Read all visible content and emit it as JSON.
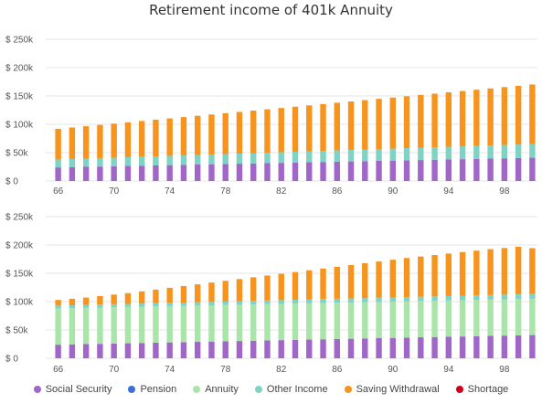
{
  "title": "Retirement income of 401k Annuity",
  "colors": {
    "social_security": "#a066c8",
    "pension": "#3b6fd8",
    "annuity": "#a9e4a9",
    "other_income": "#7fd3c4",
    "saving_withdrawal": "#f7941d",
    "shortage": "#d0021b"
  },
  "legend": [
    {
      "key": "social_security",
      "label": "Social Security"
    },
    {
      "key": "pension",
      "label": "Pension"
    },
    {
      "key": "annuity",
      "label": "Annuity"
    },
    {
      "key": "other_income",
      "label": "Other Income"
    },
    {
      "key": "saving_withdrawal",
      "label": "Saving Withdrawal"
    },
    {
      "key": "shortage",
      "label": "Shortage"
    }
  ],
  "chart_data": [
    {
      "type": "bar",
      "stacked": true,
      "title": "Retirement income of 401k Annuity",
      "x": [
        66,
        67,
        68,
        69,
        70,
        71,
        72,
        73,
        74,
        75,
        76,
        77,
        78,
        79,
        80,
        81,
        82,
        83,
        84,
        85,
        86,
        87,
        88,
        89,
        90,
        91,
        92,
        93,
        94,
        95,
        96,
        97,
        98,
        99,
        100
      ],
      "xticks": [
        "66",
        "70",
        "74",
        "78",
        "82",
        "86",
        "90",
        "94",
        "98"
      ],
      "ylim": [
        0,
        250000
      ],
      "yticks": [
        "$ 0",
        "$ 50k",
        "$ 100k",
        "$ 150k",
        "$ 200k",
        "$ 250k"
      ],
      "grid": true,
      "series": [
        {
          "name": "Social Security",
          "values": [
            24000,
            24500,
            25000,
            25500,
            26000,
            26500,
            27000,
            27500,
            28000,
            28500,
            29000,
            29500,
            30000,
            30500,
            31000,
            31500,
            32000,
            32500,
            33000,
            33500,
            34000,
            34500,
            35000,
            35500,
            36000,
            36500,
            37000,
            37500,
            38000,
            38500,
            39000,
            39500,
            40000,
            40500,
            41000
          ]
        },
        {
          "name": "Other Income",
          "values": [
            14000,
            14300,
            14600,
            14900,
            15200,
            15500,
            15800,
            16100,
            16400,
            16700,
            17000,
            17300,
            17600,
            17900,
            18200,
            18500,
            18800,
            19100,
            19400,
            19700,
            20000,
            20300,
            20600,
            20900,
            21200,
            21500,
            21800,
            22100,
            22400,
            22700,
            23000,
            23300,
            23600,
            23900,
            24200
          ]
        },
        {
          "name": "Saving Withdrawal",
          "values": [
            54000,
            55500,
            57000,
            58500,
            60000,
            61500,
            63000,
            64500,
            66000,
            67500,
            69000,
            70500,
            72000,
            73500,
            75000,
            76500,
            78000,
            79500,
            81000,
            82500,
            84000,
            85500,
            87000,
            88500,
            90000,
            91500,
            93000,
            94500,
            96000,
            97500,
            99000,
            100500,
            102000,
            103500,
            105000
          ]
        }
      ]
    },
    {
      "type": "bar",
      "stacked": true,
      "x": [
        66,
        67,
        68,
        69,
        70,
        71,
        72,
        73,
        74,
        75,
        76,
        77,
        78,
        79,
        80,
        81,
        82,
        83,
        84,
        85,
        86,
        87,
        88,
        89,
        90,
        91,
        92,
        93,
        94,
        95,
        96,
        97,
        98,
        99,
        100
      ],
      "xticks": [
        "66",
        "70",
        "74",
        "78",
        "82",
        "86",
        "90",
        "94",
        "98"
      ],
      "ylim": [
        0,
        250000
      ],
      "yticks": [
        "$ 0",
        "$ 50k",
        "$ 100k",
        "$ 150k",
        "$ 200k",
        "$ 250k"
      ],
      "grid": true,
      "series": [
        {
          "name": "Social Security",
          "values": [
            24000,
            24500,
            25000,
            25500,
            26000,
            26500,
            27000,
            27500,
            28000,
            28500,
            29000,
            29500,
            30000,
            30500,
            31000,
            31500,
            32000,
            32500,
            33000,
            33500,
            34000,
            34500,
            35000,
            35500,
            36000,
            36500,
            37000,
            37500,
            38000,
            38500,
            39000,
            39500,
            40000,
            40500,
            41000
          ]
        },
        {
          "name": "Annuity",
          "values": [
            64000,
            64000,
            64000,
            64000,
            64000,
            64000,
            64000,
            64000,
            64000,
            64000,
            64000,
            64000,
            64000,
            64000,
            64000,
            64000,
            64000,
            64000,
            64000,
            64000,
            64000,
            64000,
            64000,
            64000,
            64000,
            64000,
            64000,
            64000,
            64000,
            64000,
            64000,
            64000,
            64000,
            64000,
            64000
          ]
        },
        {
          "name": "Other Income",
          "values": [
            5000,
            5100,
            5200,
            5300,
            5400,
            5500,
            5600,
            5700,
            5800,
            5900,
            6000,
            6100,
            6200,
            6300,
            6400,
            6500,
            6600,
            6700,
            6800,
            6900,
            7000,
            7100,
            7200,
            7300,
            7400,
            7500,
            7600,
            7700,
            7800,
            7900,
            8000,
            8100,
            8200,
            8300,
            8400
          ]
        },
        {
          "name": "Saving Withdrawal",
          "values": [
            10000,
            11500,
            13000,
            15000,
            17000,
            19000,
            21500,
            24000,
            26500,
            29000,
            31500,
            34000,
            36500,
            39000,
            41500,
            44000,
            46500,
            49000,
            51500,
            54000,
            56500,
            59000,
            61500,
            64000,
            66500,
            69000,
            71000,
            73000,
            75000,
            77000,
            79000,
            81000,
            82500,
            84000,
            81000
          ]
        }
      ]
    }
  ]
}
